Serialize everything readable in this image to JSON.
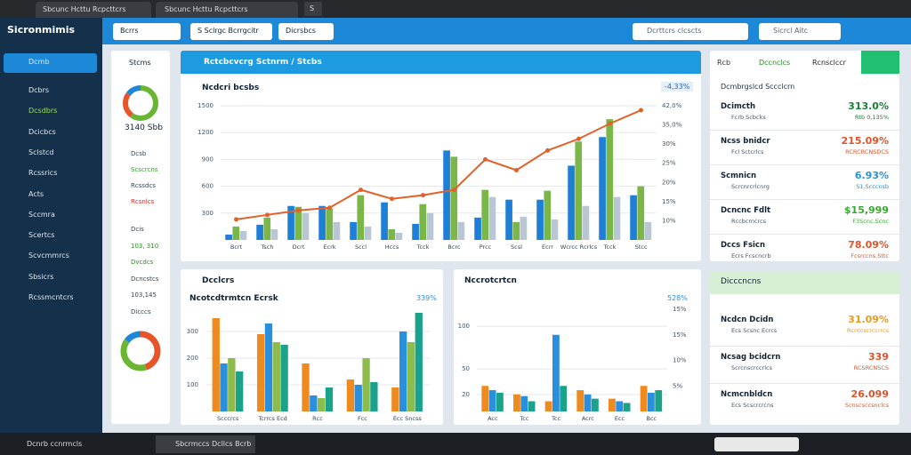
{
  "tabs": [
    "Sbcunc Hcttu Rcpcttcrs",
    "S"
  ],
  "header": {
    "logo": "Sicronmimis",
    "buttons": [
      "Bcrrs",
      "S Sclrgc Bcrrgcitr",
      "Dicrsbcs"
    ],
    "search": [
      "Dcrttcrs clcscts",
      "Sicrcl Aitc"
    ]
  },
  "sidebar": [
    "Dcmb",
    "Dcbrs",
    "Dcsdbrs",
    "Dcicbcs",
    "Sclstcd",
    "Rcssrics",
    "Acts",
    "Sccmra",
    "Scertcs",
    "Scvcmmrcs",
    "Sbsicrs",
    "Rcssmcntcrs"
  ],
  "summary": {
    "title": "Stcms",
    "value": "3140 Sbb",
    "donut_top": {
      "values": [
        60,
        25,
        15
      ],
      "colors": [
        "#6ab534",
        "#e8542a",
        "#1e88d8"
      ]
    },
    "items": [
      "Dcsb",
      "Scscrcns",
      "Rcssdcs",
      "Rcsnlcs"
    ],
    "items2": [
      "Dcis",
      "103, 310",
      "Dvcdcs",
      "Dcncstcs",
      "103,145",
      "Dicccs"
    ],
    "donut_bottom": {
      "values": [
        45,
        40,
        15
      ],
      "colors": [
        "#e8542a",
        "#6ab534",
        "#1e88d8"
      ]
    }
  },
  "main_chart": {
    "type": "bar",
    "panel_title": "Rctcbcvcrg Sctnrm / Stcbs",
    "title": "Ncdcri bcsbs",
    "badge": "-4,33%",
    "categories": [
      "Bcrt",
      "Tsch",
      "Dcrt",
      "Ecrk",
      "Sccl",
      "Hccs",
      "Tcck",
      "Bcrc",
      "Prcc",
      "Scsl",
      "Ecrr",
      "Wcrcc Rcrlcs",
      "Tcck",
      "Stcc"
    ],
    "series": [
      {
        "color": "#1e7fd6",
        "values": [
          60,
          170,
          380,
          380,
          200,
          420,
          180,
          1000,
          250,
          450,
          450,
          830,
          1150,
          500
        ]
      },
      {
        "color": "#7ab648",
        "values": [
          150,
          250,
          370,
          350,
          500,
          120,
          400,
          930,
          560,
          200,
          550,
          1100,
          1350,
          600
        ]
      },
      {
        "color": "#b9c7d2",
        "values": [
          100,
          120,
          300,
          200,
          150,
          80,
          300,
          200,
          480,
          260,
          230,
          380,
          480,
          200
        ]
      }
    ],
    "line": {
      "color": "#e0622a",
      "values": [
        230,
        280,
        330,
        360,
        560,
        460,
        500,
        560,
        900,
        780,
        1000,
        1130,
        1300,
        1450
      ]
    },
    "ylim": [
      0,
      1500
    ],
    "yticks": [
      300,
      600,
      900,
      1200,
      1500
    ],
    "right_labels": [
      "42,0%",
      "35,0%",
      "30%",
      "25%",
      "20%",
      "15%",
      "10%"
    ]
  },
  "left_chart": {
    "type": "bar",
    "title": "Dcclcrs",
    "subtitle": "Ncotcdtrmtcn Ecrsk",
    "badge": "339%",
    "categories": [
      "Scccrcs",
      "Tcrrcs Ecd",
      "Rcc",
      "Fcc",
      "Ecc Sncss"
    ],
    "series": [
      {
        "color": "#ef8a1f",
        "values": [
          350,
          290,
          180,
          120,
          90
        ]
      },
      {
        "color": "#2a8fdd",
        "values": [
          180,
          330,
          60,
          100,
          300
        ]
      },
      {
        "color": "#8cbc4a",
        "values": [
          200,
          260,
          50,
          200,
          260
        ]
      },
      {
        "color": "#1aa38a",
        "values": [
          150,
          250,
          90,
          110,
          370
        ]
      }
    ],
    "ylim": [
      0,
      400
    ],
    "yticks": [
      100,
      200,
      300
    ]
  },
  "mid_chart": {
    "type": "bar",
    "title": "Nccrotcrtcn",
    "badge": "528%",
    "categories": [
      "Acc",
      "Tcc",
      "Tcc",
      "Acrc",
      "Ecc",
      "Bcc"
    ],
    "series": [
      {
        "color": "#ef8a1f",
        "values": [
          30,
          20,
          12,
          25,
          15,
          30
        ]
      },
      {
        "color": "#2a8fdd",
        "values": [
          25,
          18,
          90,
          20,
          12,
          22
        ]
      },
      {
        "color": "#1aa38a",
        "values": [
          22,
          12,
          30,
          15,
          10,
          25
        ]
      }
    ],
    "ylim": [
      0,
      120
    ],
    "yticks": [
      20,
      50,
      100
    ],
    "right_labels": [
      "15%",
      "15%",
      "10%",
      "5%"
    ]
  },
  "right_panel": {
    "tabs": [
      "Rcb",
      "Dccnclcs",
      "Rcnsclccr"
    ],
    "title": "Dcmbrgslcd Sccclcrn",
    "rows": [
      {
        "name": "Dcimcth",
        "sub": "Fcrb Scbcks",
        "value": "313.0%",
        "sub_value": "Rtb 0,135%",
        "color": "#17803a"
      },
      {
        "name": "Ncss bnidcr",
        "sub": "Fcl Sctcrlcs",
        "value": "215.09%",
        "sub_value": "RCRCRCNSDCS",
        "color": "#e0532a"
      },
      {
        "name": "Scmnicn",
        "sub": "Scrcnrcrlcnrg",
        "value": "6.93%",
        "sub_value": "S1.Scccnsb",
        "color": "#2a8fdd"
      },
      {
        "name": "Dcncnc Fdlt",
        "sub": "Rccbcrncrcs",
        "value": "$15,999",
        "sub_value": "F3Scnc.Scnc",
        "color": "#3aa832"
      },
      {
        "name": "Dccs Fsicn",
        "sub": "Ecrs Fcscncrb",
        "value": "78.09%",
        "sub_value": "Fcsrccns.Sttc",
        "color": "#e0532a"
      }
    ]
  },
  "lower_panel": {
    "title": "Dicccncns",
    "rows": [
      {
        "name": "Ncdcn Dcidn",
        "sub": "Ecs Scsnc Ecrcs",
        "value": "31.09%",
        "sub_value": "Rcntcscrccrrcs",
        "color": "#e99a1c"
      },
      {
        "name": "Ncsag bcidcrn",
        "sub": "Scrcnscrccrlcs",
        "value": "339",
        "sub_value": "RCSRCNSCS",
        "color": "#e0532a"
      },
      {
        "name": "Ncmcnbldcn",
        "sub": "Ecs Scscrcrcns",
        "value": "26.099",
        "sub_value": "Scnscsccsnclcs",
        "color": "#e0532a"
      }
    ]
  },
  "taskbar": [
    "Dcnrb ccnrmcls",
    "Sbcrmccs Dcllcs Bcrb"
  ]
}
